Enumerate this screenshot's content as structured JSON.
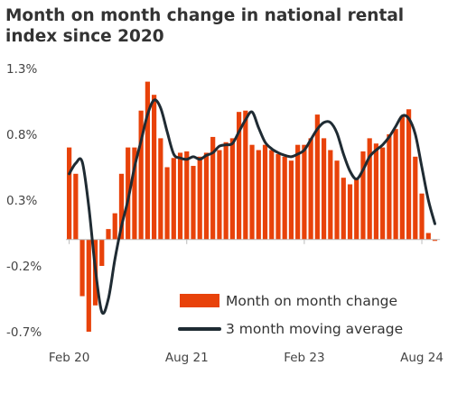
{
  "chart_data": {
    "type": "bar",
    "title": "Month on month change in national rental index since 2020",
    "ylim": [
      -0.7,
      1.3
    ],
    "y_ticks": [
      "1.3%",
      "0.8%",
      "0.3%",
      "-0.2%",
      "-0.7%"
    ],
    "y_tick_values": [
      1.3,
      0.8,
      0.3,
      -0.2,
      -0.7
    ],
    "x_ticks": [
      {
        "label": "Feb 20",
        "index": 0
      },
      {
        "label": "Aug 21",
        "index": 18
      },
      {
        "label": "Feb 23",
        "index": 36
      },
      {
        "label": "Aug 24",
        "index": 54
      }
    ],
    "grid": false,
    "legend": "bottom-right",
    "colors": {
      "bar": "#e8420a",
      "line": "#1f2b33",
      "axis": "#bbbbbb"
    },
    "series": [
      {
        "name": "Month on month change",
        "kind": "bar",
        "values": [
          0.7,
          0.5,
          -0.43,
          -0.7,
          -0.5,
          -0.2,
          0.08,
          0.2,
          0.5,
          0.7,
          0.7,
          0.98,
          1.2,
          1.1,
          0.77,
          0.55,
          0.62,
          0.66,
          0.67,
          0.56,
          0.63,
          0.66,
          0.78,
          0.68,
          0.74,
          0.77,
          0.97,
          0.98,
          0.72,
          0.68,
          0.72,
          0.68,
          0.65,
          0.63,
          0.6,
          0.72,
          0.72,
          0.77,
          0.95,
          0.77,
          0.68,
          0.6,
          0.47,
          0.42,
          0.47,
          0.67,
          0.77,
          0.73,
          0.7,
          0.8,
          0.84,
          0.94,
          0.99,
          0.63,
          0.35,
          0.05,
          -0.01
        ]
      },
      {
        "name": "3 month moving average",
        "kind": "line",
        "values": [
          0.5,
          0.58,
          0.59,
          0.25,
          -0.22,
          -0.55,
          -0.45,
          -0.15,
          0.1,
          0.3,
          0.55,
          0.75,
          0.95,
          1.06,
          1.0,
          0.82,
          0.65,
          0.62,
          0.61,
          0.63,
          0.61,
          0.64,
          0.66,
          0.71,
          0.72,
          0.73,
          0.82,
          0.91,
          0.97,
          0.85,
          0.74,
          0.69,
          0.66,
          0.64,
          0.63,
          0.65,
          0.68,
          0.76,
          0.84,
          0.89,
          0.89,
          0.81,
          0.65,
          0.52,
          0.46,
          0.53,
          0.63,
          0.68,
          0.72,
          0.78,
          0.86,
          0.94,
          0.92,
          0.8,
          0.55,
          0.3,
          0.12
        ]
      }
    ]
  }
}
